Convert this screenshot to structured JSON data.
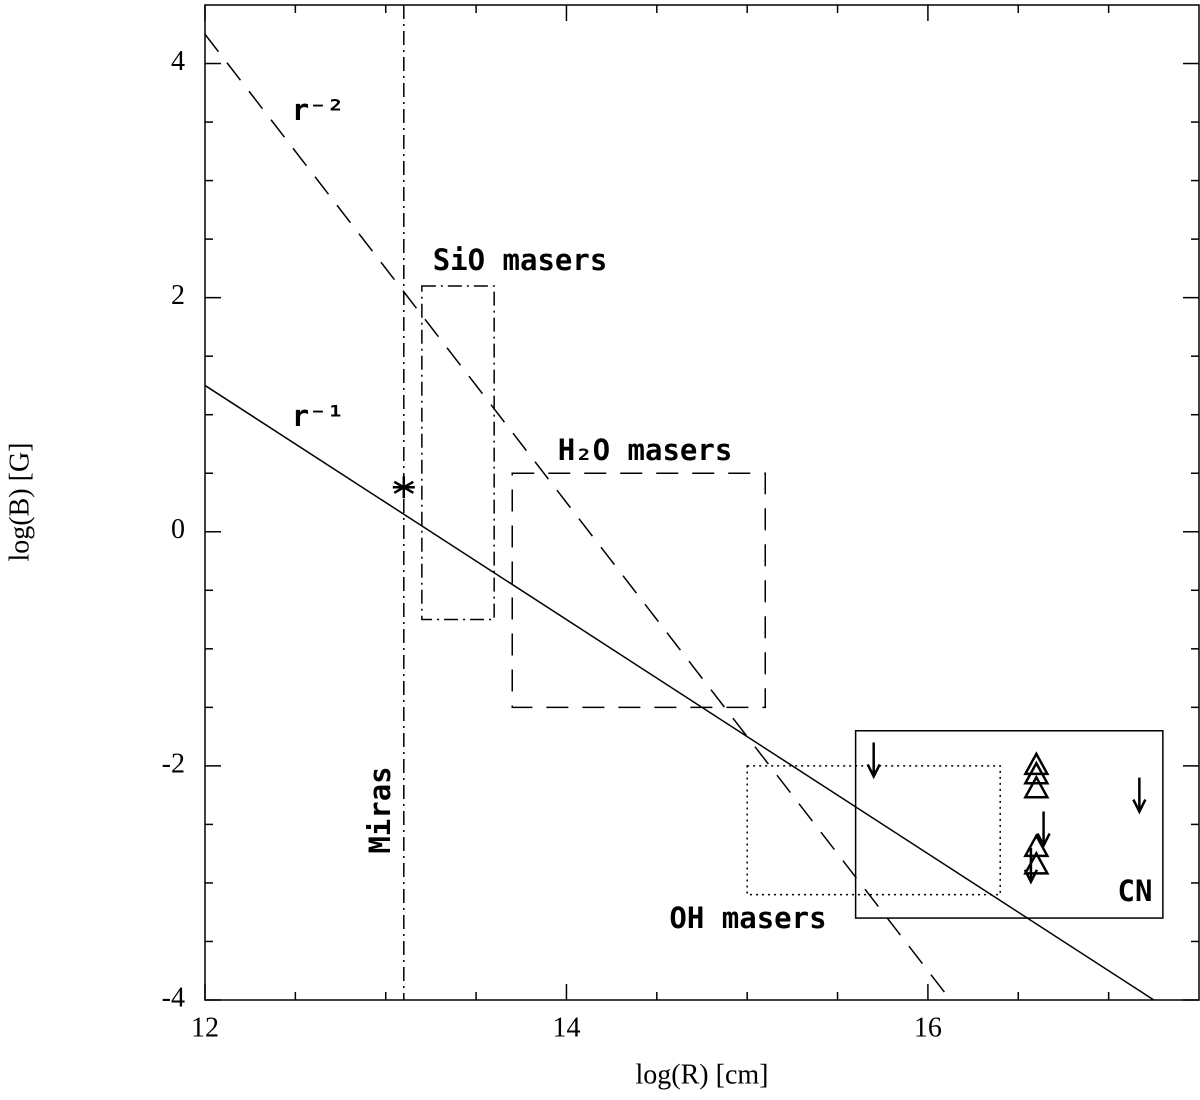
{
  "chart_data": {
    "type": "scatter",
    "x_label": "log(R) [cm]",
    "y_label": "log(B) [G]",
    "xlim": [
      12,
      17.5
    ],
    "ylim": [
      -4,
      4.5
    ],
    "xticks": [
      12,
      14,
      16
    ],
    "yticks": [
      -4,
      -2,
      0,
      2,
      4
    ],
    "xminorticks": [
      12.5,
      13,
      13.5,
      14.5,
      15,
      15.5,
      16.5,
      17
    ],
    "yminorticks": [
      -3.5,
      -3,
      -2.5,
      -1.5,
      -1,
      -0.5,
      0.5,
      1,
      1.5,
      2.5,
      3,
      3.5
    ],
    "lines": [
      {
        "label": "r⁻¹",
        "x": [
          12,
          17.25
        ],
        "y": [
          1.25,
          -4
        ],
        "style": "solid"
      },
      {
        "label": "r⁻²",
        "x": [
          12,
          16.125
        ],
        "y": [
          4.25,
          -4
        ],
        "style": "dashed"
      }
    ],
    "vlines": [
      {
        "label": "Miras",
        "x": 13.1,
        "style": "dashdot"
      }
    ],
    "regions": [
      {
        "label": "SiO masers",
        "x": [
          13.2,
          13.6
        ],
        "y": [
          -0.75,
          2.1
        ],
        "style": "dashdot"
      },
      {
        "label": "H₂O masers",
        "x": [
          13.7,
          15.1
        ],
        "y": [
          -1.5,
          0.5
        ],
        "style": "dashed"
      },
      {
        "label": "OH masers",
        "x": [
          15.0,
          16.4
        ],
        "y": [
          -3.1,
          -2.0
        ],
        "style": "dotted"
      },
      {
        "label": "CN",
        "x": [
          15.6,
          17.3
        ],
        "y": [
          -3.3,
          -1.7
        ],
        "style": "solid"
      }
    ],
    "markers": [
      {
        "marker": "star",
        "x": [
          13.1
        ],
        "y": [
          0.38
        ]
      },
      {
        "marker": "triangle",
        "x": [
          16.6,
          16.6,
          16.6,
          16.6,
          16.6
        ],
        "y": [
          -2.0,
          -2.08,
          -2.2,
          -2.7,
          -2.85
        ]
      },
      {
        "marker": "upper-limit",
        "x": [
          15.7,
          17.17,
          16.64,
          16.57
        ],
        "y": [
          -1.8,
          -2.1,
          -2.39,
          -2.7
        ]
      }
    ]
  }
}
